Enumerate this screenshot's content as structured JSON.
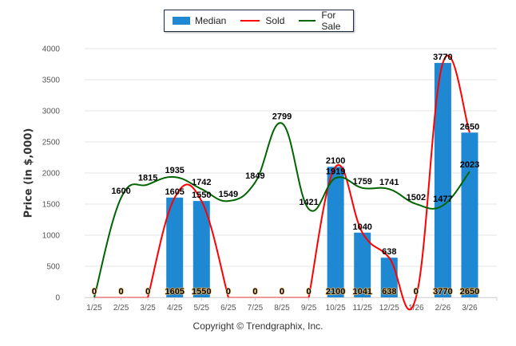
{
  "chart_data": {
    "type": "bar",
    "title": "",
    "xlabel": "",
    "ylabel": "Price (in $,000)",
    "ylim": [
      0,
      4000
    ],
    "yticks": [
      0,
      500,
      1000,
      1500,
      2000,
      2500,
      3000,
      3500,
      4000
    ],
    "grid": true,
    "legend_position": "top-center",
    "categories": [
      "1/25",
      "2/25",
      "3/25",
      "4/25",
      "5/25",
      "6/25",
      "7/25",
      "8/25",
      "9/25",
      "10/25",
      "11/25",
      "12/25",
      "1/26",
      "2/26",
      "3/26"
    ],
    "series": [
      {
        "name": "Median",
        "type": "bar",
        "color": "#1f88d2",
        "values": [
          0,
          0,
          0,
          1605,
          1550,
          0,
          0,
          0,
          0,
          2100,
          1041,
          638,
          0,
          3770,
          2650
        ]
      },
      {
        "name": "Sold",
        "type": "line",
        "color": "#ff0000",
        "values": [
          0,
          0,
          0,
          1605,
          1550,
          0,
          0,
          0,
          0,
          2100,
          1040,
          638,
          0,
          3770,
          2650
        ]
      },
      {
        "name": "For Sale",
        "type": "line",
        "color": "#006400",
        "values": [
          0,
          1600,
          1815,
          1935,
          1742,
          1549,
          1849,
          2799,
          1421,
          1919,
          1759,
          1741,
          1502,
          1477,
          2023
        ]
      }
    ]
  },
  "legend": {
    "median_label": "Median",
    "sold_label": "Sold",
    "forsale_label": "For Sale"
  },
  "colors": {
    "median": "#1f88d2",
    "sold": "#ff0000",
    "forsale": "#006400",
    "grid": "#e6e6e6"
  },
  "footer": "Copyright © Trendgraphix, Inc."
}
